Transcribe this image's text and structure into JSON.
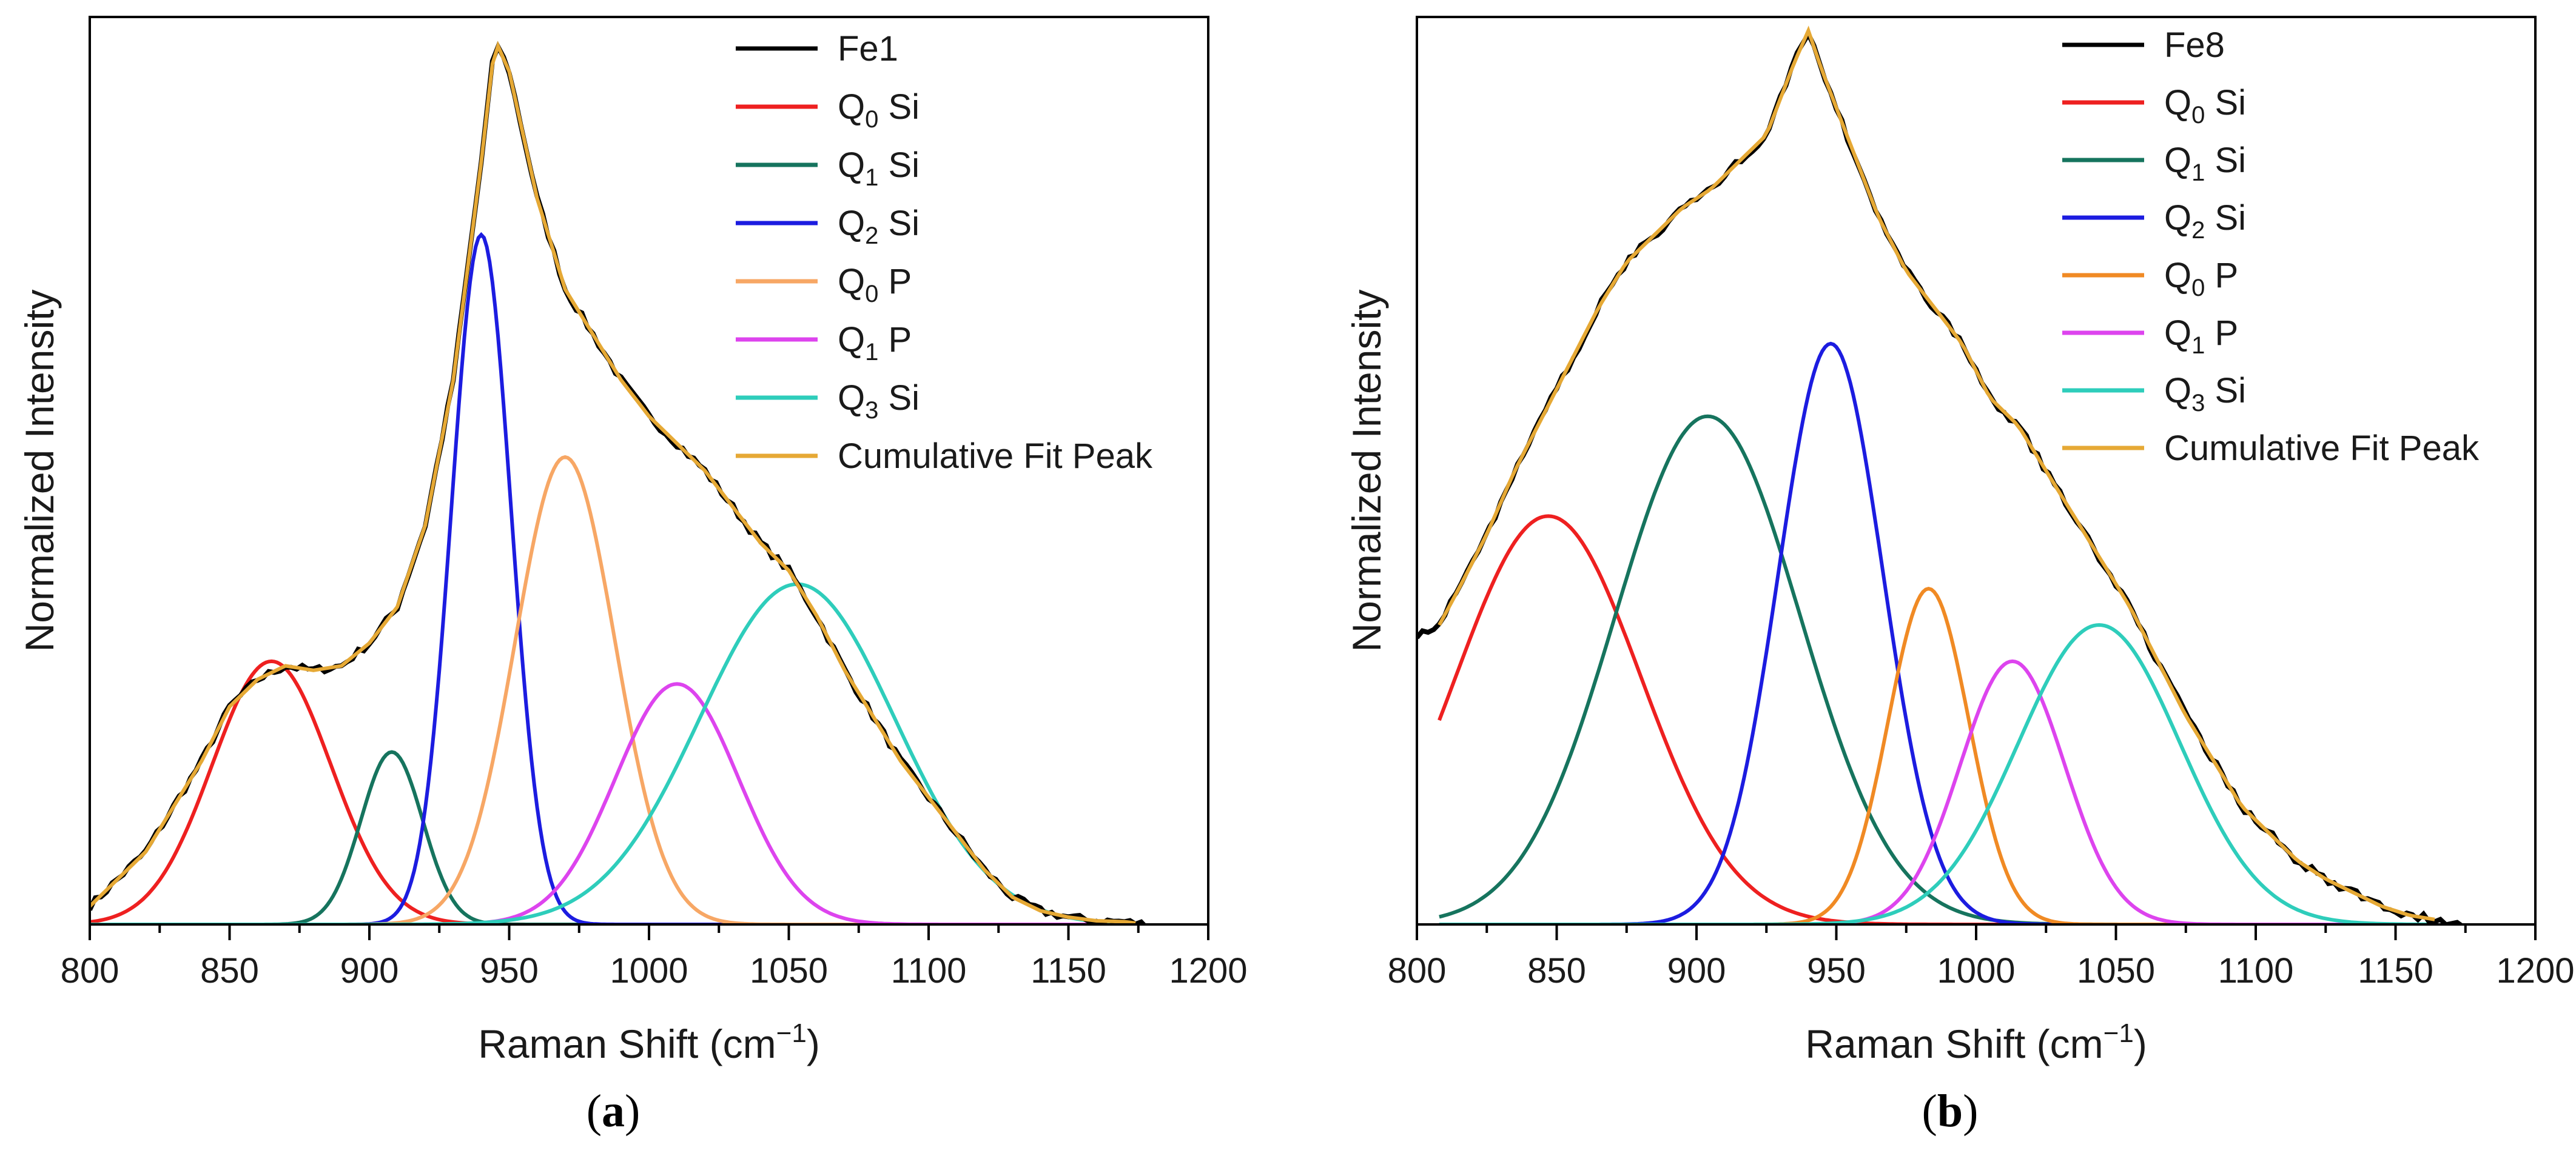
{
  "chart_data": [
    {
      "type": "line",
      "panel_label": "a",
      "xlabel_main": "Raman Shift (cm",
      "xlabel_sup": "−1",
      "xlabel_tail": ")",
      "ylabel": "Normalized Intensity",
      "xlim": [
        800,
        1200
      ],
      "ylim": [
        0,
        1.0
      ],
      "x_ticks": [
        "800",
        "850",
        "900",
        "950",
        "1000",
        "1050",
        "1100",
        "1150",
        "1200"
      ],
      "y_ticks_shown": false,
      "legend_position": "top-right",
      "data_series": {
        "name": "Fe1",
        "color": "#000000",
        "x": [
          800,
          820,
          840,
          850,
          860,
          870,
          880,
          890,
          900,
          910,
          920,
          930,
          940,
          945,
          950,
          960,
          970,
          980,
          990,
          1000,
          1010,
          1020,
          1030,
          1040,
          1050,
          1060,
          1070,
          1080,
          1090,
          1100,
          1110,
          1120,
          1130,
          1140,
          1150,
          1160,
          1170,
          1178
        ],
        "y": [
          0.02,
          0.08,
          0.18,
          0.24,
          0.27,
          0.285,
          0.28,
          0.285,
          0.31,
          0.35,
          0.44,
          0.6,
          0.84,
          0.975,
          0.94,
          0.8,
          0.7,
          0.65,
          0.6,
          0.56,
          0.53,
          0.5,
          0.46,
          0.42,
          0.39,
          0.34,
          0.28,
          0.23,
          0.18,
          0.14,
          0.1,
          0.06,
          0.03,
          0.015,
          0.008,
          0.004,
          0.003,
          0.0
        ]
      },
      "fit_peaks": [
        {
          "name": "Q0 Si",
          "label_main": "Q",
          "label_sub": "0",
          "label_tail": " Si",
          "color": "#ee2020",
          "center": 865,
          "height": 0.29,
          "fwhm": 50
        },
        {
          "name": "Q1 Si",
          "label_main": "Q",
          "label_sub": "1",
          "label_tail": " Si",
          "color": "#16745e",
          "center": 908,
          "height": 0.19,
          "fwhm": 26
        },
        {
          "name": "Q2 Si",
          "label_main": "Q",
          "label_sub": "2",
          "label_tail": " Si",
          "color": "#1c1ce0",
          "center": 940,
          "height": 0.76,
          "fwhm": 25
        },
        {
          "name": "Q0 P",
          "label_main": "Q",
          "label_sub": "0",
          "label_tail": " P",
          "color": "#f7a765",
          "center": 970,
          "height": 0.515,
          "fwhm": 42
        },
        {
          "name": "Q1 P",
          "label_main": "Q",
          "label_sub": "1",
          "label_tail": " P",
          "color": "#dd44ee",
          "center": 1010,
          "height": 0.265,
          "fwhm": 52
        },
        {
          "name": "Q3 Si",
          "label_main": "Q",
          "label_sub": "3",
          "label_tail": " Si",
          "color": "#2ecdbb",
          "center": 1053,
          "height": 0.375,
          "fwhm": 82
        }
      ],
      "cumulative_fit": {
        "name": "Cumulative Fit Peak",
        "color": "#e6a935",
        "x_range": [
          800,
          1175
        ]
      }
    },
    {
      "type": "line",
      "panel_label": "b",
      "xlabel_main": "Raman Shift (cm",
      "xlabel_sup": "−1",
      "xlabel_tail": ")",
      "ylabel": "Normalized Intensity",
      "xlim": [
        800,
        1200
      ],
      "ylim": [
        0,
        1.0
      ],
      "x_ticks": [
        "800",
        "850",
        "900",
        "950",
        "1000",
        "1050",
        "1100",
        "1150",
        "1200"
      ],
      "y_ticks_shown": false,
      "legend_position": "top-right",
      "data_series": {
        "name": "Fe8",
        "color": "#000000",
        "x": [
          800,
          808,
          815,
          825,
          835,
          845,
          855,
          865,
          875,
          885,
          895,
          905,
          915,
          925,
          935,
          940,
          945,
          955,
          965,
          975,
          985,
          995,
          1005,
          1015,
          1025,
          1035,
          1045,
          1055,
          1065,
          1075,
          1085,
          1095,
          1105,
          1115,
          1125,
          1135,
          1145,
          1155,
          1165,
          1175
        ],
        "y": [
          0.32,
          0.33,
          0.37,
          0.43,
          0.5,
          0.56,
          0.62,
          0.68,
          0.73,
          0.76,
          0.79,
          0.81,
          0.84,
          0.87,
          0.95,
          0.985,
          0.94,
          0.86,
          0.78,
          0.72,
          0.68,
          0.64,
          0.58,
          0.55,
          0.5,
          0.45,
          0.4,
          0.35,
          0.29,
          0.23,
          0.18,
          0.13,
          0.1,
          0.07,
          0.05,
          0.035,
          0.02,
          0.01,
          0.005,
          0.0
        ]
      },
      "fit_peaks": [
        {
          "name": "Q0 Si",
          "label_main": "Q",
          "label_sub": "0",
          "label_tail": " Si",
          "color": "#ee2020",
          "center": 847,
          "height": 0.45,
          "fwhm": 78
        },
        {
          "name": "Q1 Si",
          "label_main": "Q",
          "label_sub": "1",
          "label_tail": " Si",
          "color": "#16745e",
          "center": 904,
          "height": 0.56,
          "fwhm": 78
        },
        {
          "name": "Q2 Si",
          "label_main": "Q",
          "label_sub": "2",
          "label_tail": " Si",
          "color": "#1c1ce0",
          "center": 948,
          "height": 0.64,
          "fwhm": 44
        },
        {
          "name": "Q0 P",
          "label_main": "Q",
          "label_sub": "0",
          "label_tail": " P",
          "color": "#f08a24",
          "center": 983,
          "height": 0.37,
          "fwhm": 34
        },
        {
          "name": "Q1 P",
          "label_main": "Q",
          "label_sub": "1",
          "label_tail": " P",
          "color": "#dd44ee",
          "center": 1013,
          "height": 0.29,
          "fwhm": 44
        },
        {
          "name": "Q3 Si",
          "label_main": "Q",
          "label_sub": "3",
          "label_tail": " Si",
          "color": "#2ecdbb",
          "center": 1044,
          "height": 0.33,
          "fwhm": 68
        }
      ],
      "cumulative_fit": {
        "name": "Cumulative Fit Peak",
        "color": "#e6a935",
        "x_range": [
          808,
          1165
        ]
      }
    }
  ]
}
